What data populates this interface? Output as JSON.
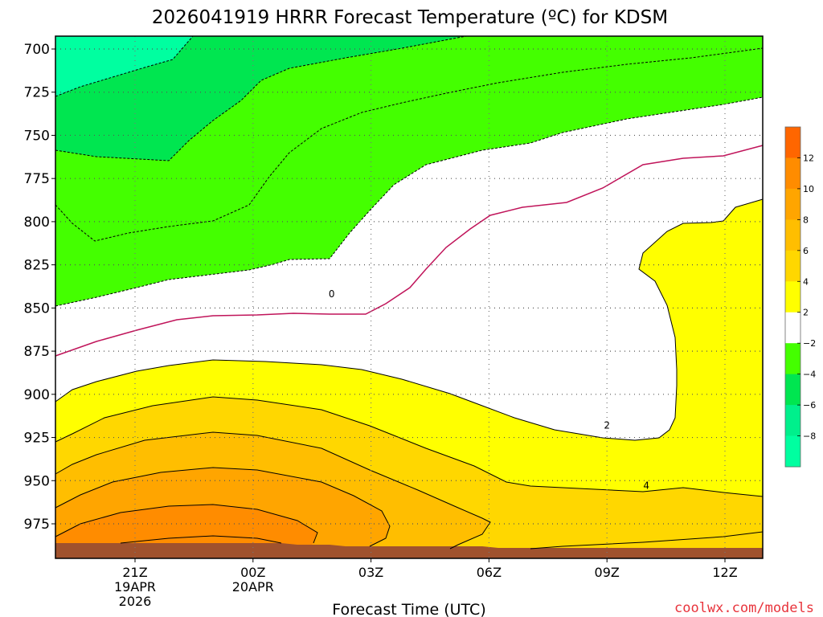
{
  "chart_data": {
    "type": "heatmap",
    "title": "2026041919 HRRR Forecast Temperature (ºC) for KDSM",
    "xlabel": "Forecast Time (UTC)",
    "ylabel": "",
    "credit": "coolwx.com/models",
    "y_ticks": [
      "700",
      "725",
      "750",
      "775",
      "800",
      "825",
      "850",
      "875",
      "900",
      "925",
      "950",
      "975"
    ],
    "x_ticks": [
      {
        "line1": "21Z",
        "line2": "19APR",
        "line3": "2026"
      },
      {
        "line1": "00Z",
        "line2": "20APR",
        "line3": ""
      },
      {
        "line1": "03Z",
        "line2": "",
        "line3": ""
      },
      {
        "line1": "06Z",
        "line2": "",
        "line3": ""
      },
      {
        "line1": "09Z",
        "line2": "",
        "line3": ""
      },
      {
        "line1": "12Z",
        "line2": "",
        "line3": ""
      }
    ],
    "colorbar": {
      "labels": [
        "12",
        "10",
        "8",
        "6",
        "4",
        "2",
        "−2",
        "−4",
        "−6",
        "−8"
      ],
      "colors": [
        "#ff6600",
        "#ff8c00",
        "#ffa500",
        "#ffbe00",
        "#ffd700",
        "#ffff00",
        "#ffffff",
        "#44ff00",
        "#00e650",
        "#00f08c",
        "#00ffa0"
      ]
    },
    "contour_labels": [
      {
        "text": "0",
        "time_h": 5.0,
        "pressure_hpa": 842
      },
      {
        "text": "2",
        "time_h": 12.0,
        "pressure_hpa": 918
      },
      {
        "text": "4",
        "time_h": 13.0,
        "pressure_hpa": 953
      }
    ],
    "regions": [
      {
        "name": "-8 to -6 C",
        "color": "#00ffa0"
      },
      {
        "name": "-6 to -4 C",
        "color": "#00e650"
      },
      {
        "name": "-4 to -2 C",
        "color": "#44ff00"
      },
      {
        "name": "-2 to 2 C",
        "color": "#ffffff"
      },
      {
        "name": "2 to 4 C",
        "color": "#ffff00"
      },
      {
        "name": "4 to 6 C",
        "color": "#ffd700"
      },
      {
        "name": "6 to 8 C",
        "color": "#ffbe00"
      },
      {
        "name": "8 to 10 C",
        "color": "#ffa500"
      },
      {
        "name": "10 to 12 C",
        "color": "#ff8c00"
      }
    ]
  }
}
